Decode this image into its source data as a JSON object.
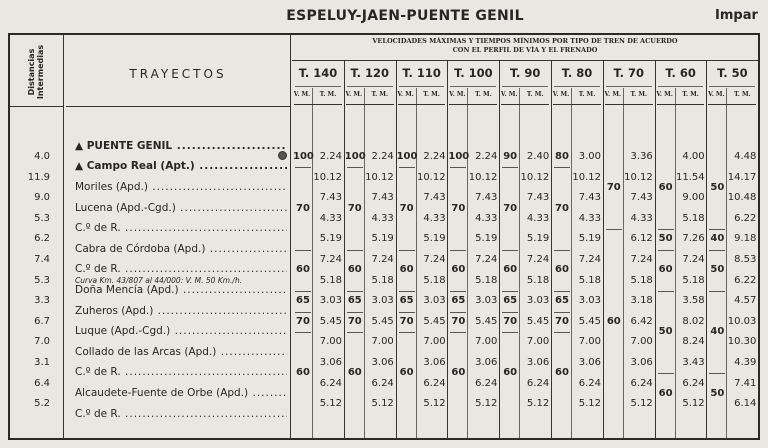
{
  "header": {
    "title": "ESPELUY-JAEN-PUENTE GENIL",
    "parity": "Impar"
  },
  "table_head": {
    "distances_label_1": "Distancias",
    "distances_label_2": "Intermedias",
    "routes_label": "TRAYECTOS",
    "speeds_label_1": "VELOCIDADES MÁXIMAS Y TIEMPOS MÍNIMOS POR TIPO DE TREN DE ACUERDO",
    "speeds_label_2": "CON EL PERFIL DE VÍA Y EL FRENADO",
    "vm_label": "V. M.",
    "tm_label": "T. M."
  },
  "stations": [
    {
      "name": "▲ PUENTE GENIL",
      "bold": true
    },
    {
      "name": "▲ Campo Real (Apt.)",
      "bold": true
    },
    {
      "name": "Moriles (Apd.)"
    },
    {
      "name": "Lucena (Apd.-Cgd.)"
    },
    {
      "name": "C.º de R."
    },
    {
      "name": "Cabra de Córdoba (Apd.)"
    },
    {
      "name": "C.º de R."
    },
    {
      "name": "Doña Mencía (Apd.)"
    },
    {
      "name": "Zuheros (Apd.)"
    },
    {
      "name": "Luque (Apd.-Cgd.)"
    },
    {
      "name": "Collado de las Arcas (Apd.)"
    },
    {
      "name": "C.º de R."
    },
    {
      "name": "Alcaudete-Fuente de Orbe (Apd.)"
    },
    {
      "name": "C.º de R."
    }
  ],
  "note": "Curva Km. 43/807 al 44/000: V. M. 50 Km./h.",
  "distances": [
    "4.0",
    "11.9",
    "9.0",
    "5.3",
    "6.2",
    "7.4",
    "5.3",
    "3.3",
    "6.7",
    "7.0",
    "3.1",
    "6.4",
    "5.2"
  ],
  "train_types": [
    {
      "label": "T. 140",
      "vm": [
        {
          "v": "100",
          "from": 0,
          "to": 0
        },
        {
          "v": "70",
          "from": 1,
          "to": 4
        },
        {
          "v": "60",
          "from": 5,
          "to": 6
        },
        {
          "v": "65",
          "from": 7,
          "to": 7
        },
        {
          "v": "70",
          "from": 8,
          "to": 8
        },
        {
          "v": "60",
          "from": 9,
          "to": 12
        }
      ],
      "tm": [
        "2.24",
        "10.12",
        "7.43",
        "4.33",
        "5.19",
        "7.24",
        "5.18",
        "3.03",
        "5.45",
        "7.00",
        "3.06",
        "6.24",
        "5.12"
      ]
    },
    {
      "label": "T. 120",
      "vm": [
        {
          "v": "100",
          "from": 0,
          "to": 0
        },
        {
          "v": "70",
          "from": 1,
          "to": 4
        },
        {
          "v": "60",
          "from": 5,
          "to": 6
        },
        {
          "v": "65",
          "from": 7,
          "to": 7
        },
        {
          "v": "70",
          "from": 8,
          "to": 8
        },
        {
          "v": "60",
          "from": 9,
          "to": 12
        }
      ],
      "tm": [
        "2.24",
        "10.12",
        "7.43",
        "4.33",
        "5.19",
        "7.24",
        "5.18",
        "3.03",
        "5.45",
        "7.00",
        "3.06",
        "6.24",
        "5.12"
      ]
    },
    {
      "label": "T. 110",
      "vm": [
        {
          "v": "100",
          "from": 0,
          "to": 0
        },
        {
          "v": "70",
          "from": 1,
          "to": 4
        },
        {
          "v": "60",
          "from": 5,
          "to": 6
        },
        {
          "v": "65",
          "from": 7,
          "to": 7
        },
        {
          "v": "70",
          "from": 8,
          "to": 8
        },
        {
          "v": "60",
          "from": 9,
          "to": 12
        }
      ],
      "tm": [
        "2.24",
        "10.12",
        "7.43",
        "4.33",
        "5.19",
        "7.24",
        "5.18",
        "3.03",
        "5.45",
        "7.00",
        "3.06",
        "6.24",
        "5.12"
      ]
    },
    {
      "label": "T. 100",
      "vm": [
        {
          "v": "100",
          "from": 0,
          "to": 0
        },
        {
          "v": "70",
          "from": 1,
          "to": 4
        },
        {
          "v": "60",
          "from": 5,
          "to": 6
        },
        {
          "v": "65",
          "from": 7,
          "to": 7
        },
        {
          "v": "70",
          "from": 8,
          "to": 8
        },
        {
          "v": "60",
          "from": 9,
          "to": 12
        }
      ],
      "tm": [
        "2.24",
        "10.12",
        "7.43",
        "4.33",
        "5.19",
        "7.24",
        "5.18",
        "3.03",
        "5.45",
        "7.00",
        "3.06",
        "6.24",
        "5.12"
      ]
    },
    {
      "label": "T. 90",
      "vm": [
        {
          "v": "90",
          "from": 0,
          "to": 0
        },
        {
          "v": "70",
          "from": 1,
          "to": 4
        },
        {
          "v": "60",
          "from": 5,
          "to": 6
        },
        {
          "v": "65",
          "from": 7,
          "to": 7
        },
        {
          "v": "70",
          "from": 8,
          "to": 8
        },
        {
          "v": "60",
          "from": 9,
          "to": 12
        }
      ],
      "tm": [
        "2.40",
        "10.12",
        "7.43",
        "4.33",
        "5.19",
        "7.24",
        "5.18",
        "3.03",
        "5.45",
        "7.00",
        "3.06",
        "6.24",
        "5.12"
      ]
    },
    {
      "label": "T. 80",
      "vm": [
        {
          "v": "80",
          "from": 0,
          "to": 0
        },
        {
          "v": "70",
          "from": 1,
          "to": 4
        },
        {
          "v": "60",
          "from": 5,
          "to": 6
        },
        {
          "v": "65",
          "from": 7,
          "to": 7
        },
        {
          "v": "70",
          "from": 8,
          "to": 8
        },
        {
          "v": "60",
          "from": 9,
          "to": 12
        }
      ],
      "tm": [
        "3.00",
        "10.12",
        "7.43",
        "4.33",
        "5.19",
        "7.24",
        "5.18",
        "3.03",
        "5.45",
        "7.00",
        "3.06",
        "6.24",
        "5.12"
      ]
    },
    {
      "label": "T. 70",
      "vm": [
        {
          "v": "70",
          "from": 0,
          "to": 3
        },
        {
          "v": "60",
          "from": 4,
          "to": 12
        }
      ],
      "tm": [
        "3.36",
        "10.12",
        "7.43",
        "4.33",
        "6.12",
        "7.24",
        "5.18",
        "3.18",
        "6.42",
        "7.00",
        "3.06",
        "6.24",
        "5.12"
      ]
    },
    {
      "label": "T. 60",
      "vm": [
        {
          "v": "60",
          "from": 0,
          "to": 3
        },
        {
          "v": "50",
          "from": 4,
          "to": 4
        },
        {
          "v": "60",
          "from": 5,
          "to": 6
        },
        {
          "v": "50",
          "from": 7,
          "to": 10
        },
        {
          "v": "60",
          "from": 11,
          "to": 12
        }
      ],
      "tm": [
        "4.00",
        "11.54",
        "9.00",
        "5.18",
        "7.26",
        "7.24",
        "5.18",
        "3.58",
        "8.02",
        "8.24",
        "3.43",
        "6.24",
        "5.12"
      ]
    },
    {
      "label": "T. 50",
      "vm": [
        {
          "v": "50",
          "from": 0,
          "to": 3
        },
        {
          "v": "40",
          "from": 4,
          "to": 4
        },
        {
          "v": "50",
          "from": 5,
          "to": 6
        },
        {
          "v": "40",
          "from": 7,
          "to": 10
        },
        {
          "v": "50",
          "from": 11,
          "to": 12
        }
      ],
      "tm": [
        "4.48",
        "14.17",
        "10.48",
        "6.22",
        "9.18",
        "8.53",
        "6.22",
        "4.57",
        "10.03",
        "10.30",
        "4.39",
        "7.41",
        "6.14"
      ]
    }
  ],
  "icons": {
    "station_marker": "triangle-icon",
    "signal_dot": "dot-icon"
  }
}
